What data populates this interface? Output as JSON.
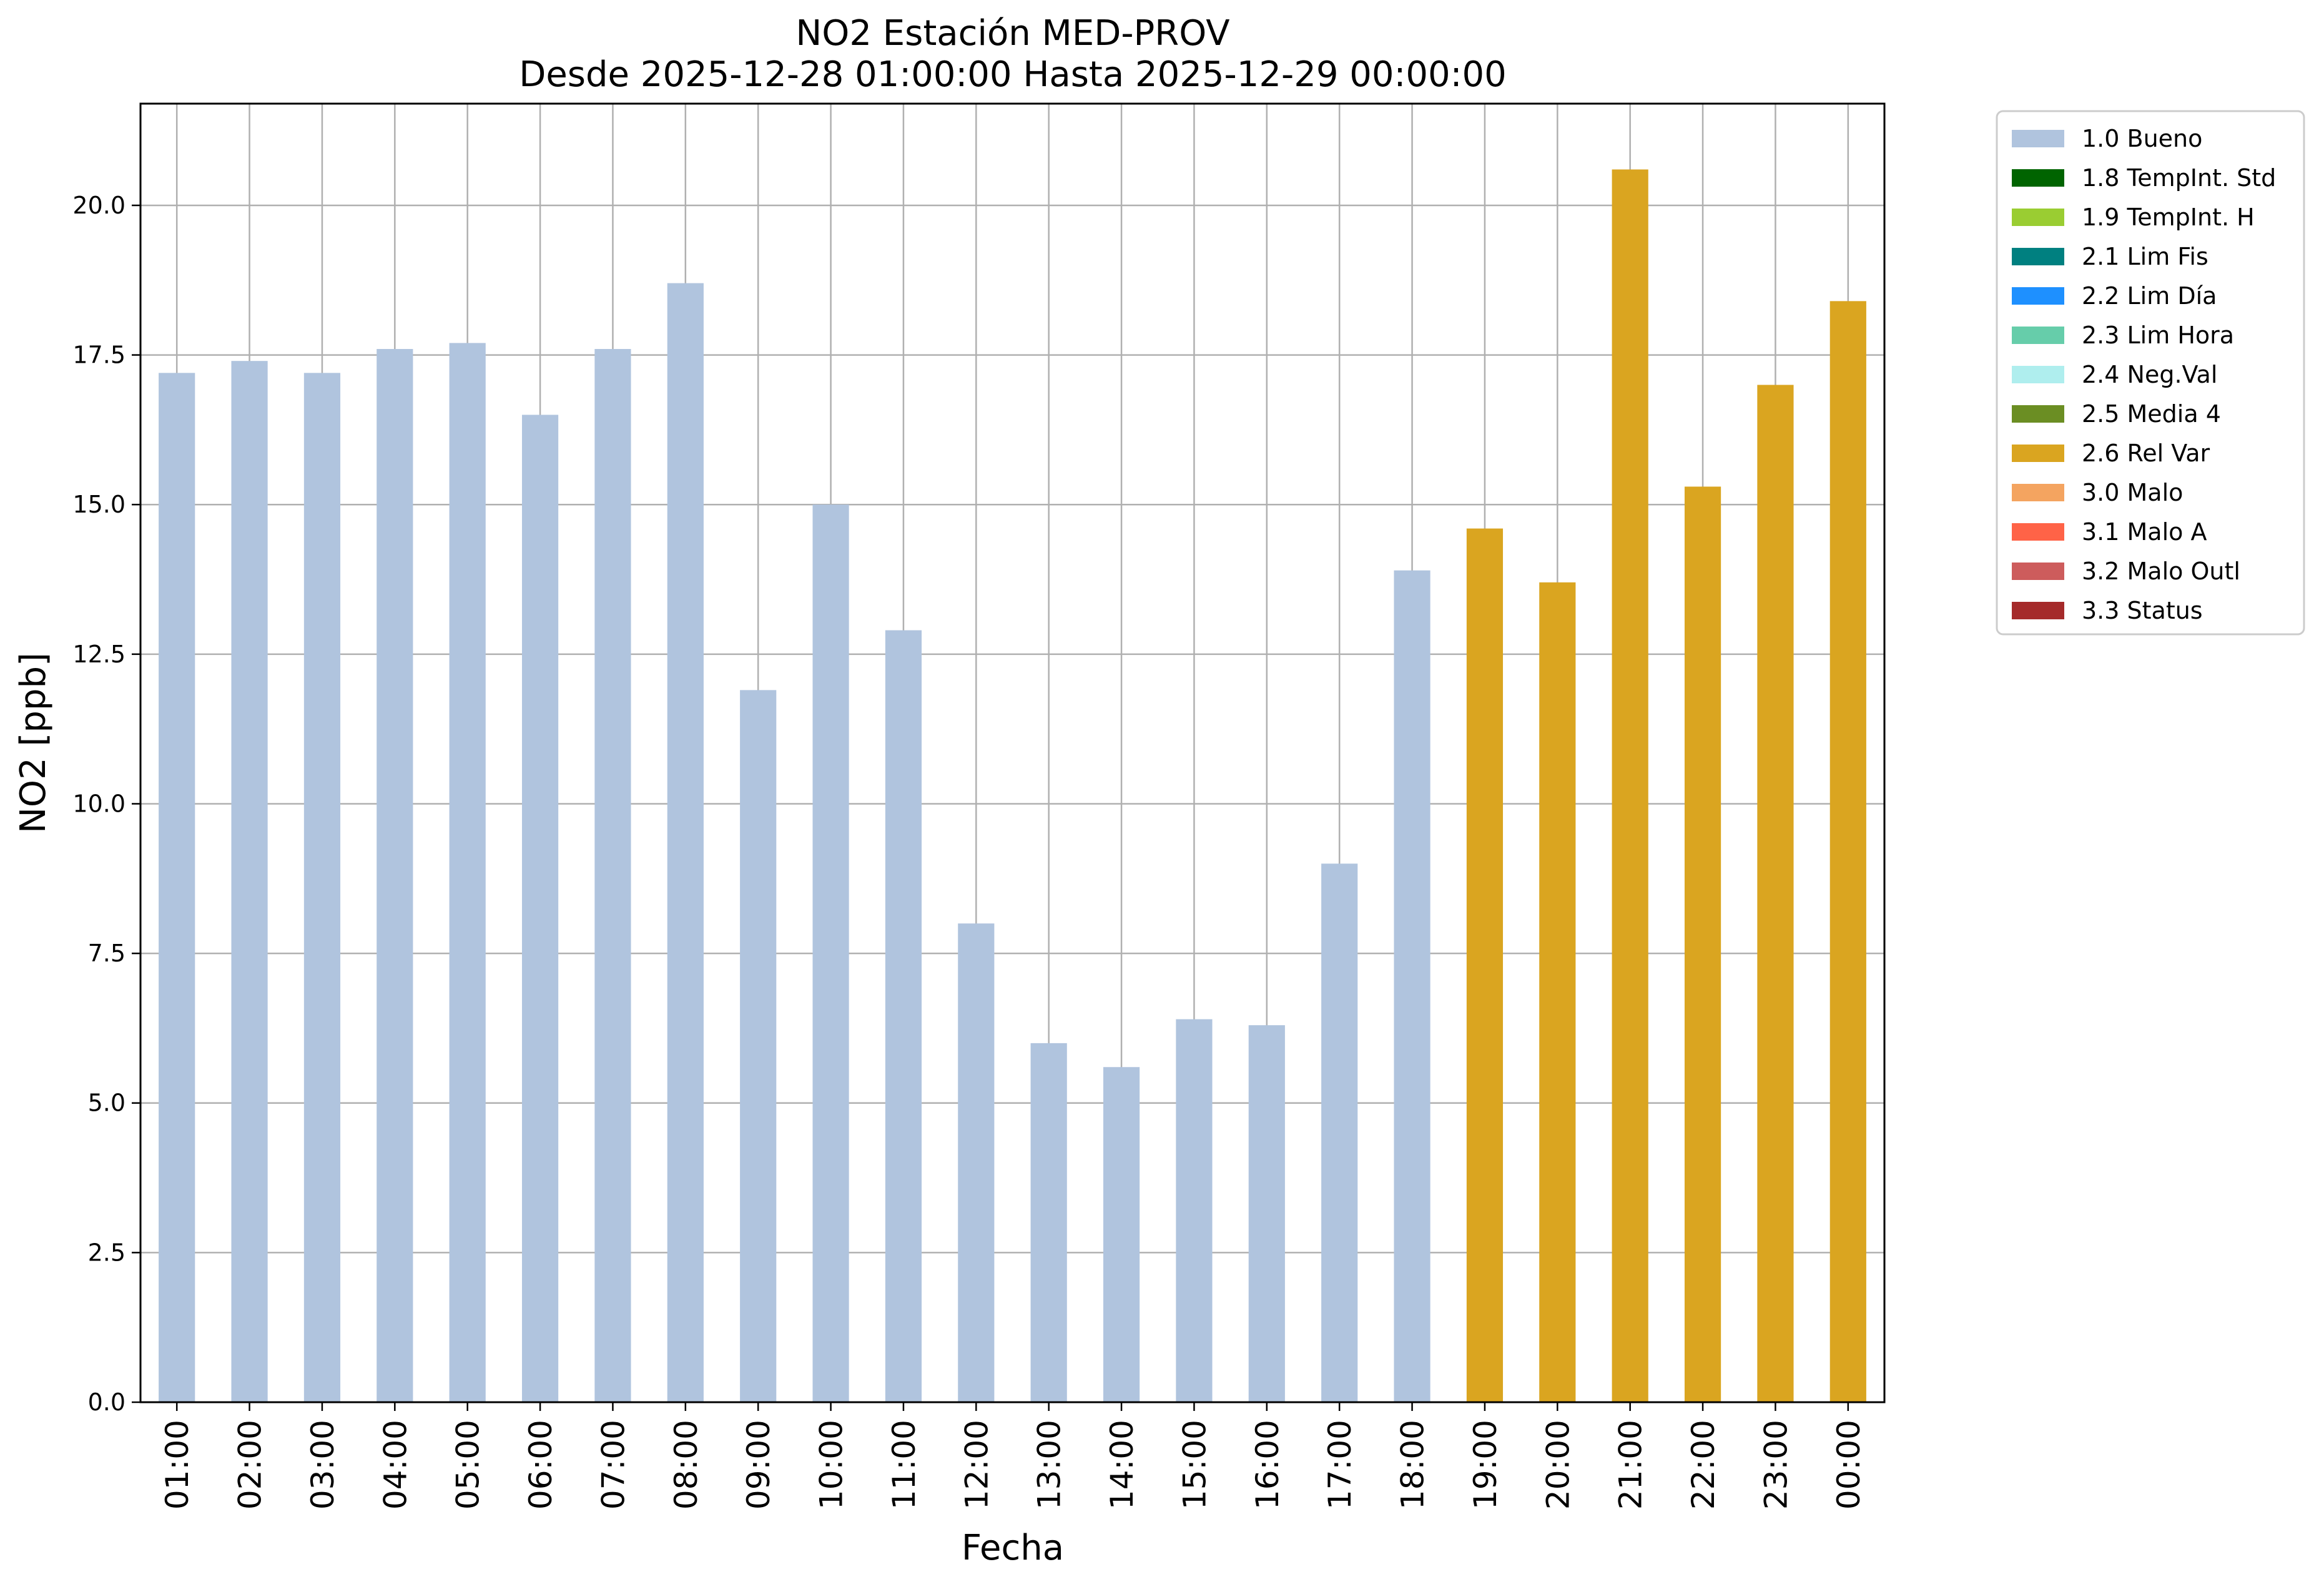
{
  "chart_data": {
    "type": "bar",
    "title": "NO2 Estación MED-PROV",
    "subtitle": "Desde 2025-12-28 01:00:00 Hasta 2025-12-29 00:00:00",
    "xlabel": "Fecha",
    "ylabel": "NO2 [ppb]",
    "ylim": [
      0,
      21.7
    ],
    "yticks": [
      "0.0",
      "2.5",
      "5.0",
      "7.5",
      "10.0",
      "12.5",
      "15.0",
      "17.5",
      "20.0"
    ],
    "grid": true,
    "legend_position": "outside-top-right",
    "categories": [
      "01:00",
      "02:00",
      "03:00",
      "04:00",
      "05:00",
      "06:00",
      "07:00",
      "08:00",
      "09:00",
      "10:00",
      "11:00",
      "12:00",
      "13:00",
      "14:00",
      "15:00",
      "16:00",
      "17:00",
      "18:00",
      "19:00",
      "20:00",
      "21:00",
      "22:00",
      "23:00",
      "00:00"
    ],
    "values": [
      17.2,
      17.4,
      17.2,
      17.6,
      17.7,
      16.5,
      17.6,
      18.7,
      11.9,
      15.0,
      12.9,
      8.0,
      6.0,
      5.6,
      6.4,
      6.3,
      9.0,
      13.9,
      14.6,
      13.7,
      20.6,
      15.3,
      17.0,
      18.4
    ],
    "flags": [
      "1.0 Bueno",
      "1.0 Bueno",
      "1.0 Bueno",
      "1.0 Bueno",
      "1.0 Bueno",
      "1.0 Bueno",
      "1.0 Bueno",
      "1.0 Bueno",
      "1.0 Bueno",
      "1.0 Bueno",
      "1.0 Bueno",
      "1.0 Bueno",
      "1.0 Bueno",
      "1.0 Bueno",
      "1.0 Bueno",
      "1.0 Bueno",
      "1.0 Bueno",
      "1.0 Bueno",
      "2.6 Rel Var",
      "2.6 Rel Var",
      "2.6 Rel Var",
      "2.6 Rel Var",
      "2.6 Rel Var",
      "2.6 Rel Var"
    ],
    "legend": [
      {
        "label": "1.0 Bueno",
        "color": "#b0c4de"
      },
      {
        "label": "1.8 TempInt. Std",
        "color": "#006400"
      },
      {
        "label": "1.9 TempInt. H",
        "color": "#9acd32"
      },
      {
        "label": "2.1 Lim Fis",
        "color": "#008080"
      },
      {
        "label": "2.2 Lim Día",
        "color": "#1e90ff"
      },
      {
        "label": "2.3 Lim Hora",
        "color": "#66cdaa"
      },
      {
        "label": "2.4 Neg.Val",
        "color": "#afeeee"
      },
      {
        "label": "2.5 Media 4",
        "color": "#6b8e23"
      },
      {
        "label": "2.6 Rel Var",
        "color": "#daa520"
      },
      {
        "label": "3.0 Malo",
        "color": "#f4a460"
      },
      {
        "label": "3.1 Malo A",
        "color": "#ff6347"
      },
      {
        "label": "3.2 Malo Outl",
        "color": "#cd5c5c"
      },
      {
        "label": "3.3 Status",
        "color": "#a52a2a"
      }
    ]
  }
}
